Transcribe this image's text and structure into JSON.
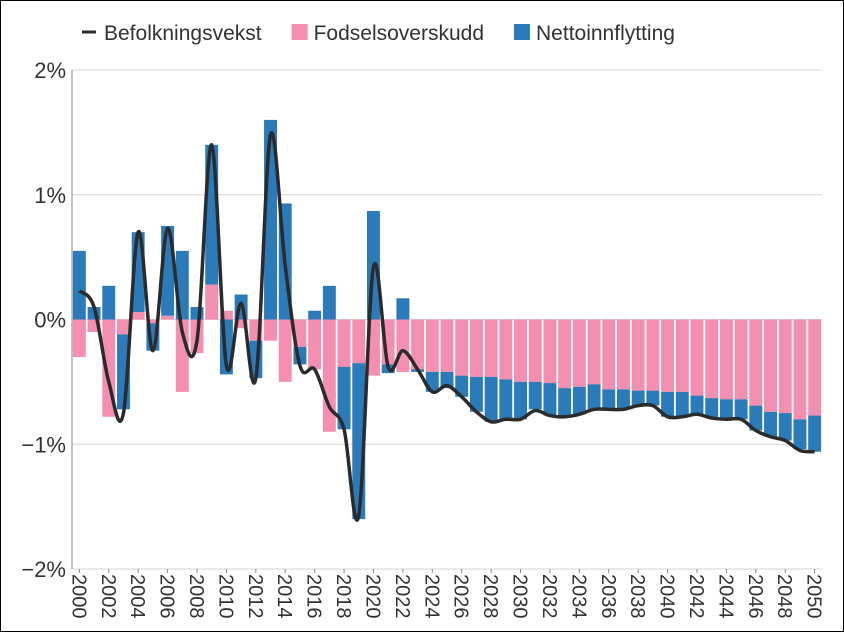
{
  "chart_data": {
    "type": "bar",
    "barmode": "relative",
    "x": [
      2000,
      2001,
      2002,
      2003,
      2004,
      2005,
      2006,
      2007,
      2008,
      2009,
      2010,
      2011,
      2012,
      2013,
      2014,
      2015,
      2016,
      2017,
      2018,
      2019,
      2020,
      2021,
      2022,
      2023,
      2024,
      2025,
      2026,
      2027,
      2028,
      2029,
      2030,
      2031,
      2032,
      2033,
      2034,
      2035,
      2036,
      2037,
      2038,
      2039,
      2040,
      2041,
      2042,
      2043,
      2044,
      2045,
      2046,
      2047,
      2048,
      2049,
      2050
    ],
    "series": [
      {
        "name": "Befolkningsvekst",
        "type": "line",
        "color": "#2b2b2b",
        "values": [
          0.23,
          0.1,
          -0.5,
          -0.75,
          0.7,
          -0.25,
          0.73,
          -0.1,
          -0.17,
          1.4,
          -0.37,
          0.13,
          -0.47,
          1.48,
          0.43,
          -0.37,
          -0.4,
          -0.7,
          -0.88,
          -1.57,
          0.42,
          -0.38,
          -0.25,
          -0.4,
          -0.58,
          -0.53,
          -0.62,
          -0.74,
          -0.82,
          -0.8,
          -0.8,
          -0.73,
          -0.77,
          -0.78,
          -0.76,
          -0.72,
          -0.72,
          -0.72,
          -0.69,
          -0.69,
          -0.78,
          -0.78,
          -0.76,
          -0.79,
          -0.8,
          -0.8,
          -0.89,
          -0.94,
          -0.97,
          -1.05,
          -1.06
        ]
      },
      {
        "name": "Fodselsoverskudd",
        "type": "bar",
        "color": "#f48fb1",
        "values": [
          -0.3,
          -0.1,
          -0.78,
          -0.12,
          0.06,
          -0.03,
          0.03,
          -0.58,
          -0.27,
          0.28,
          0.07,
          -0.07,
          -0.17,
          -0.17,
          -0.5,
          -0.22,
          -0.4,
          -0.9,
          -0.38,
          -0.35,
          -0.45,
          -0.36,
          -0.42,
          -0.4,
          -0.42,
          -0.42,
          -0.45,
          -0.46,
          -0.46,
          -0.48,
          -0.5,
          -0.5,
          -0.51,
          -0.55,
          -0.54,
          -0.52,
          -0.56,
          -0.56,
          -0.57,
          -0.57,
          -0.58,
          -0.58,
          -0.61,
          -0.63,
          -0.64,
          -0.64,
          -0.69,
          -0.74,
          -0.75,
          -0.8,
          -0.77
        ]
      },
      {
        "name": "Nettoinnflytting",
        "type": "bar",
        "color": "#2b7bba",
        "values": [
          0.55,
          0.1,
          0.27,
          -0.6,
          0.64,
          -0.22,
          0.72,
          0.55,
          0.1,
          1.12,
          -0.44,
          0.2,
          -0.3,
          1.6,
          0.93,
          -0.14,
          0.07,
          0.27,
          -0.5,
          -1.25,
          0.87,
          -0.07,
          0.17,
          -0.02,
          -0.16,
          -0.13,
          -0.17,
          -0.28,
          -0.36,
          -0.32,
          -0.3,
          -0.22,
          -0.26,
          -0.23,
          -0.22,
          -0.2,
          -0.16,
          -0.16,
          -0.12,
          -0.12,
          -0.2,
          -0.2,
          -0.15,
          -0.16,
          -0.16,
          -0.16,
          -0.2,
          -0.2,
          -0.22,
          -0.24,
          -0.29
        ]
      }
    ],
    "xlim": [
      1999.5,
      2050.5
    ],
    "xticks": [
      2000,
      2002,
      2004,
      2006,
      2008,
      2010,
      2012,
      2014,
      2016,
      2018,
      2020,
      2022,
      2024,
      2026,
      2028,
      2030,
      2032,
      2034,
      2036,
      2038,
      2040,
      2042,
      2044,
      2046,
      2048,
      2050
    ],
    "ylim": [
      -2,
      2
    ],
    "yticks": [
      {
        "value": -2,
        "label": "−2%"
      },
      {
        "value": -1,
        "label": "−1%"
      },
      {
        "value": 0,
        "label": "0%"
      },
      {
        "value": 1,
        "label": "1%"
      },
      {
        "value": 2,
        "label": "2%"
      }
    ],
    "grid": true,
    "legend": "top"
  }
}
